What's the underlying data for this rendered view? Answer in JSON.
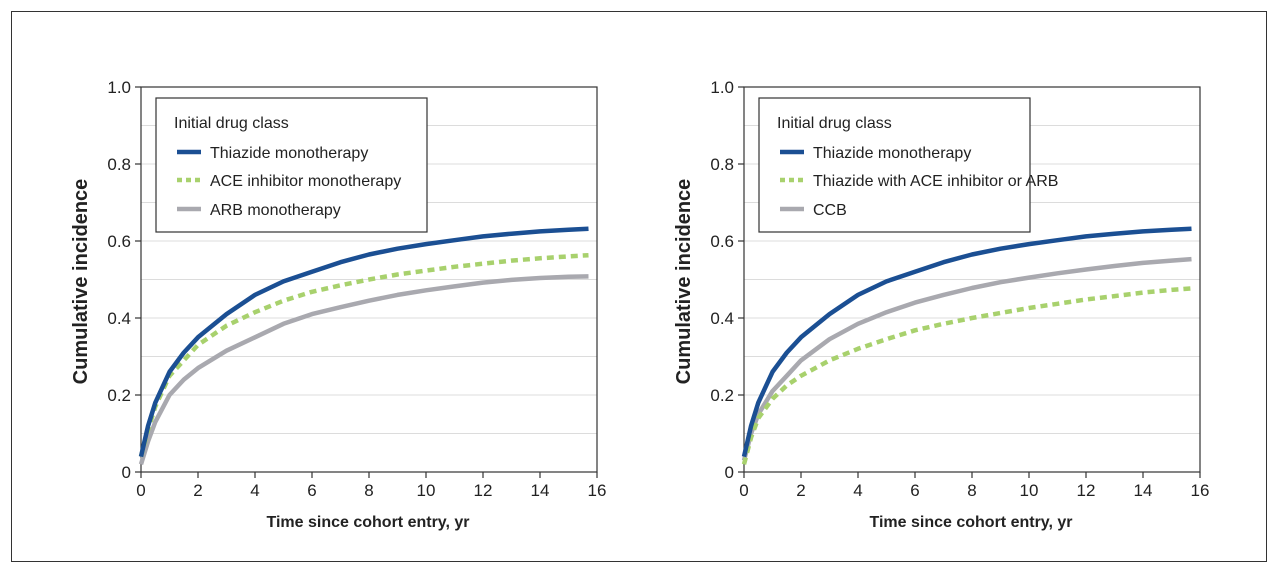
{
  "chart_data": [
    {
      "type": "line",
      "xlabel": "Time since cohort entry, yr",
      "ylabel": "Cumulative incidence",
      "xlim": [
        0,
        16
      ],
      "ylim": [
        0,
        1.0
      ],
      "xticks": [
        0,
        2,
        4,
        6,
        8,
        10,
        12,
        14,
        16
      ],
      "xtick_labels": [
        "0",
        "2",
        "4",
        "6",
        "8",
        "10",
        "12",
        "14",
        "16"
      ],
      "yticks": [
        0,
        0.2,
        0.4,
        0.6,
        0.8,
        1.0
      ],
      "ytick_labels": [
        "0",
        "0.2",
        "0.4",
        "0.6",
        "0.8",
        "1.0"
      ],
      "grid": "horizontal",
      "legend_title": "Initial drug class",
      "legend_position": "top-left",
      "series": [
        {
          "name": "Thiazide monotherapy",
          "color": "#1b4f93",
          "style": "solid",
          "x": [
            0,
            0.25,
            0.5,
            1,
            1.5,
            2,
            3,
            4,
            5,
            6,
            7,
            8,
            9,
            10,
            11,
            12,
            13,
            14,
            15,
            15.7
          ],
          "y": [
            0.04,
            0.12,
            0.18,
            0.26,
            0.31,
            0.35,
            0.41,
            0.46,
            0.495,
            0.52,
            0.545,
            0.565,
            0.58,
            0.592,
            0.602,
            0.612,
            0.619,
            0.625,
            0.629,
            0.632
          ]
        },
        {
          "name": "ACE inhibitor monotherapy",
          "color": "#a8d16d",
          "style": "dashed",
          "x": [
            0,
            0.25,
            0.5,
            1,
            1.5,
            2,
            3,
            4,
            5,
            6,
            7,
            8,
            9,
            10,
            11,
            12,
            13,
            14,
            15,
            15.7
          ],
          "y": [
            0.04,
            0.11,
            0.17,
            0.25,
            0.29,
            0.33,
            0.38,
            0.415,
            0.445,
            0.468,
            0.485,
            0.5,
            0.513,
            0.523,
            0.533,
            0.541,
            0.549,
            0.555,
            0.56,
            0.563
          ]
        },
        {
          "name": "ARB monotherapy",
          "color": "#a9a9af",
          "style": "solid",
          "x": [
            0,
            0.25,
            0.5,
            1,
            1.5,
            2,
            3,
            4,
            5,
            6,
            7,
            8,
            9,
            10,
            11,
            12,
            13,
            14,
            15,
            15.7
          ],
          "y": [
            0.02,
            0.08,
            0.13,
            0.2,
            0.24,
            0.27,
            0.315,
            0.35,
            0.385,
            0.41,
            0.428,
            0.445,
            0.46,
            0.472,
            0.482,
            0.492,
            0.499,
            0.504,
            0.507,
            0.508
          ]
        }
      ]
    },
    {
      "type": "line",
      "xlabel": "Time since cohort entry, yr",
      "ylabel": "Cumulative incidence",
      "xlim": [
        0,
        16
      ],
      "ylim": [
        0,
        1.0
      ],
      "xticks": [
        0,
        2,
        4,
        6,
        8,
        10,
        12,
        14,
        16
      ],
      "xtick_labels": [
        "0",
        "2",
        "4",
        "6",
        "8",
        "10",
        "12",
        "14",
        "16"
      ],
      "yticks": [
        0,
        0.2,
        0.4,
        0.6,
        0.8,
        1.0
      ],
      "ytick_labels": [
        "0",
        "0.2",
        "0.4",
        "0.6",
        "0.8",
        "1.0"
      ],
      "grid": "horizontal",
      "legend_title": "Initial drug class",
      "legend_position": "top-left",
      "series": [
        {
          "name": "Thiazide monotherapy",
          "color": "#1b4f93",
          "style": "solid",
          "x": [
            0,
            0.25,
            0.5,
            1,
            1.5,
            2,
            3,
            4,
            5,
            6,
            7,
            8,
            9,
            10,
            11,
            12,
            13,
            14,
            15,
            15.7
          ],
          "y": [
            0.04,
            0.12,
            0.18,
            0.26,
            0.31,
            0.35,
            0.41,
            0.46,
            0.495,
            0.52,
            0.545,
            0.565,
            0.58,
            0.592,
            0.602,
            0.612,
            0.619,
            0.625,
            0.629,
            0.632
          ]
        },
        {
          "name": "Thiazide with ACE inhibitor or ARB",
          "color": "#a8d16d",
          "style": "dashed",
          "x": [
            0,
            0.25,
            0.5,
            1,
            1.5,
            2,
            3,
            4,
            5,
            6,
            7,
            8,
            9,
            10,
            11,
            12,
            13,
            14,
            15,
            15.7
          ],
          "y": [
            0.02,
            0.09,
            0.14,
            0.19,
            0.225,
            0.25,
            0.29,
            0.32,
            0.345,
            0.368,
            0.385,
            0.4,
            0.413,
            0.426,
            0.437,
            0.448,
            0.457,
            0.466,
            0.473,
            0.477
          ]
        },
        {
          "name": "CCB",
          "color": "#a9a9af",
          "style": "solid",
          "x": [
            0,
            0.25,
            0.5,
            1,
            1.5,
            2,
            3,
            4,
            5,
            6,
            7,
            8,
            9,
            10,
            11,
            12,
            13,
            14,
            15,
            15.7
          ],
          "y": [
            0.03,
            0.1,
            0.15,
            0.21,
            0.25,
            0.29,
            0.345,
            0.385,
            0.415,
            0.44,
            0.46,
            0.478,
            0.493,
            0.505,
            0.516,
            0.526,
            0.535,
            0.543,
            0.549,
            0.553
          ]
        }
      ]
    }
  ]
}
